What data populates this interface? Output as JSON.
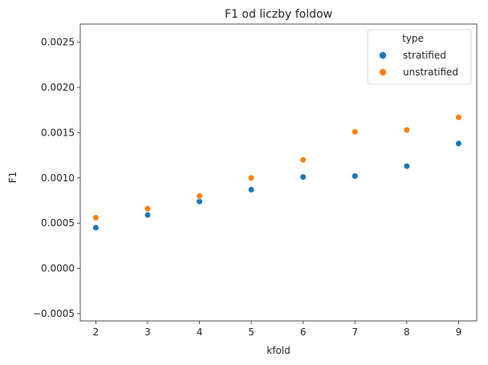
{
  "chart_data": {
    "type": "scatter",
    "title": "F1 od liczby foldow",
    "xlabel": "kfold",
    "ylabel": "F1",
    "xlim": [
      1.7,
      9.35
    ],
    "ylim": [
      -0.00058,
      0.0027
    ],
    "x_ticks": [
      "2",
      "3",
      "4",
      "5",
      "6",
      "7",
      "8",
      "9"
    ],
    "y_ticks": [
      "−0.0005",
      "0.0000",
      "0.0005",
      "0.0010",
      "0.0015",
      "0.0020",
      "0.0025"
    ],
    "y_tick_values": [
      -0.0005,
      0.0,
      0.0005,
      0.001,
      0.0015,
      0.002,
      0.0025
    ],
    "grid": false,
    "legend": {
      "title": "type",
      "placement": "top-right"
    },
    "series": [
      {
        "name": "stratified",
        "color": "#1f77b4",
        "x": [
          2,
          3,
          4,
          5,
          6,
          7,
          8,
          9
        ],
        "values": [
          0.00045,
          0.00059,
          0.00074,
          0.00087,
          0.00101,
          0.00102,
          0.00113,
          0.00138
        ]
      },
      {
        "name": "unstratified",
        "color": "#ff7f0e",
        "x": [
          2,
          3,
          4,
          5,
          6,
          7,
          8,
          9
        ],
        "values": [
          0.00056,
          0.00066,
          0.0008,
          0.001,
          0.0012,
          0.00151,
          0.00153,
          0.00167
        ]
      }
    ]
  }
}
